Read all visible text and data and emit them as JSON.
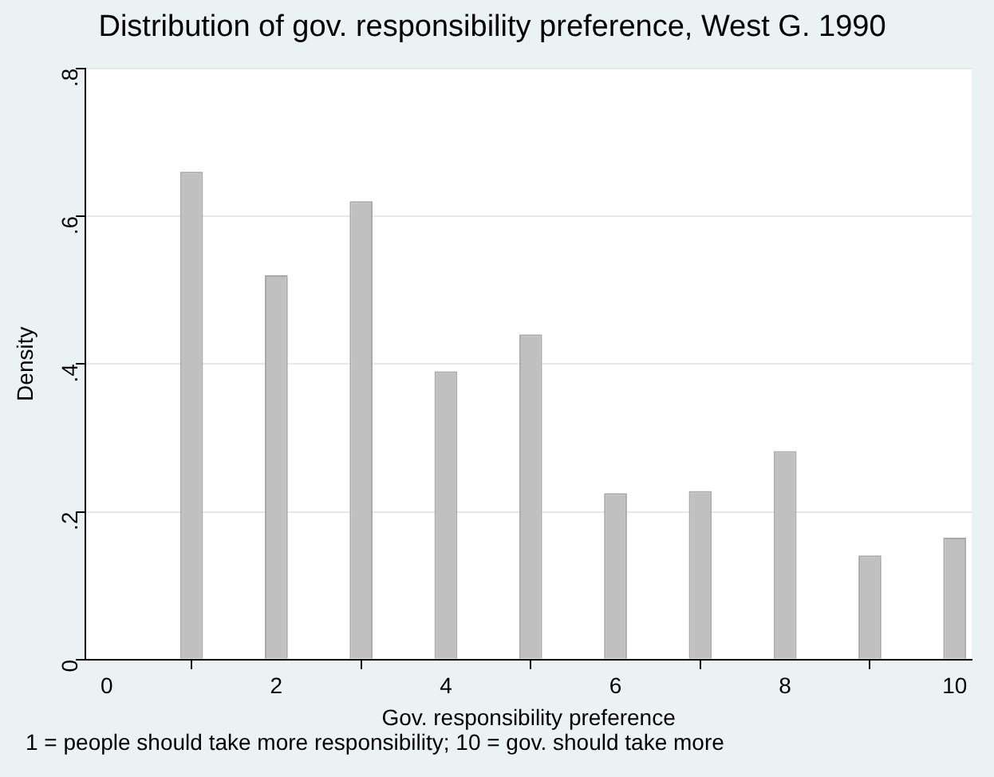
{
  "chart_data": {
    "type": "bar",
    "title": "Distribution of gov. responsibility preference, West G. 1990",
    "xlabel": "Gov. responsibility preference",
    "ylabel": "Density",
    "x": [
      1,
      2,
      3,
      4,
      5,
      6,
      7,
      8,
      9,
      10
    ],
    "values": [
      0.66,
      0.52,
      0.62,
      0.39,
      0.44,
      0.225,
      0.228,
      0.282,
      0.141,
      0.165
    ],
    "color": "#c0c0c0",
    "xlim": [
      -0.25,
      10.2
    ],
    "xticks": [
      0,
      2,
      4,
      6,
      8,
      10
    ],
    "ylim": [
      0,
      0.8
    ],
    "yticks": [
      {
        "value": 0,
        "label": "0"
      },
      {
        "value": 0.2,
        "label": ".2"
      },
      {
        "value": 0.4,
        "label": ".4"
      },
      {
        "value": 0.6,
        "label": ".6"
      },
      {
        "value": 0.8,
        "label": ".8"
      }
    ],
    "grid": "y",
    "annotations": [
      "1 = people should take more responsibility; 10 = gov. should take more"
    ]
  }
}
